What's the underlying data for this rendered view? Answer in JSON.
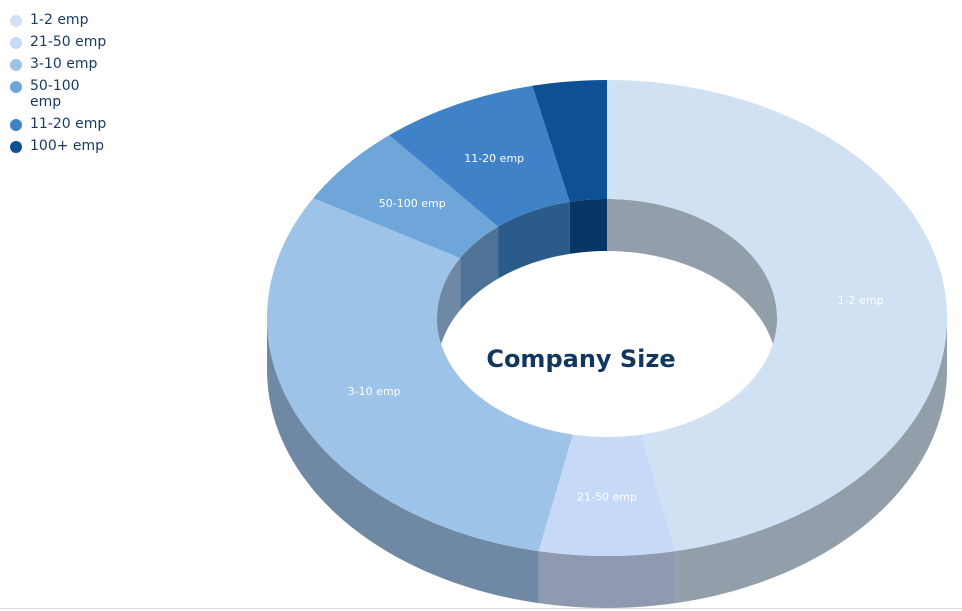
{
  "chart_data": {
    "type": "pie",
    "style": "3d-donut",
    "title": "Company Size",
    "legend": "top-left",
    "categories": [
      "1-2 emp",
      "21-50 emp",
      "3-10 emp",
      "50-100 emp",
      "11-20 emp",
      "100+ emp"
    ],
    "values": [
      46.5,
      6.4,
      30.0,
      5.5,
      7.5,
      3.5
    ],
    "slice_labels": [
      "1-2 emp",
      "21-50 emp",
      "3-10 emp",
      "50-100 emp",
      "11-20 emp",
      ""
    ],
    "colors": [
      "#cfe1f2",
      "#c6daf7",
      "#9dc4e8",
      "#6fa6da",
      "#3f82c7",
      "#0e5095"
    ],
    "wall_colors": [
      "#929ea9",
      "#8f9ab0",
      "#6f89a4",
      "#4f7396",
      "#2a5b8a",
      "#083766"
    ]
  }
}
